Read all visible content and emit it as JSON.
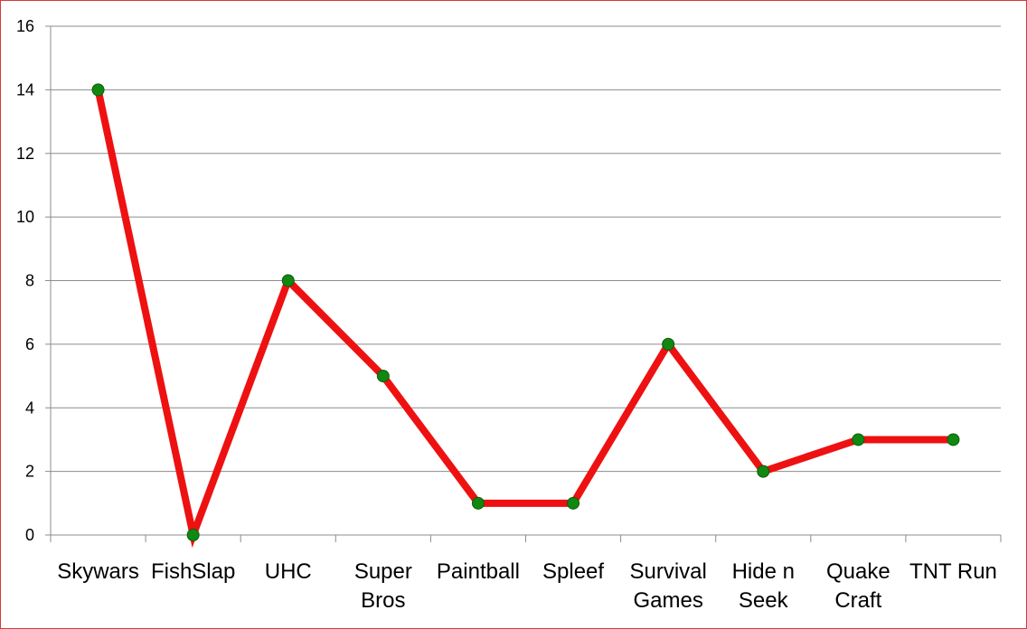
{
  "chart_data": {
    "type": "line",
    "title": "",
    "xlabel": "",
    "ylabel": "",
    "categories": [
      [
        "Skywars"
      ],
      [
        "FishSlap"
      ],
      [
        "UHC"
      ],
      [
        "Super",
        "Bros"
      ],
      [
        "Paintball"
      ],
      [
        "Spleef"
      ],
      [
        "Survival",
        "Games"
      ],
      [
        "Hide n",
        "Seek"
      ],
      [
        "Quake",
        "Craft"
      ],
      [
        "TNT Run"
      ]
    ],
    "series": [
      {
        "values": [
          14,
          0,
          8,
          5,
          1,
          1,
          6,
          2,
          3,
          3
        ]
      }
    ],
    "ylim": [
      0,
      16
    ],
    "yticks": [
      0,
      2,
      4,
      6,
      8,
      10,
      12,
      14,
      16
    ],
    "grid": true,
    "legend": "none",
    "colors": {
      "line": "#ee1111",
      "marker": "#118811",
      "marker_stroke": "#0b5e0b",
      "grid": "#8c8c8c",
      "border": "#d23a3a"
    }
  }
}
